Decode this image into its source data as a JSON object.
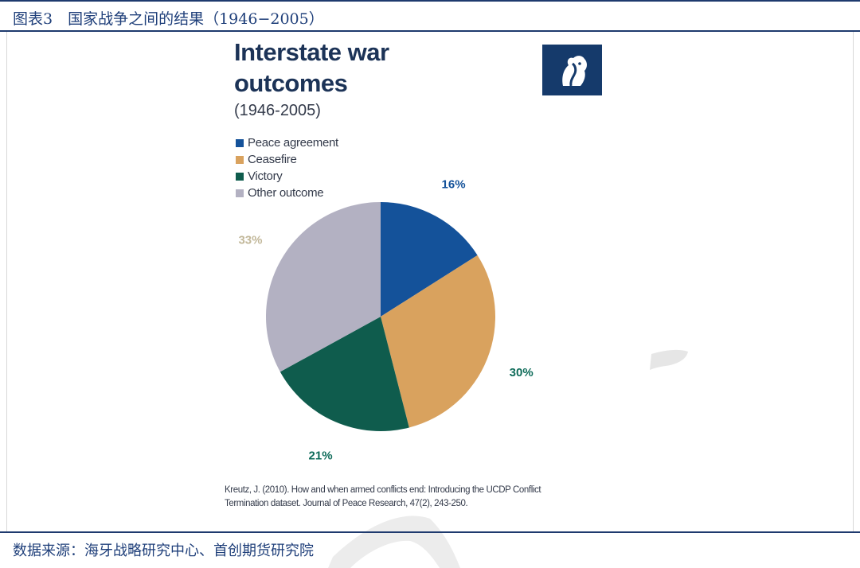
{
  "header": {
    "title": "图表3　国家战争之间的结果（1946−2005）"
  },
  "figure": {
    "title_line1": "Interstate war",
    "title_line2": "outcomes",
    "subtitle": "(1946-2005)",
    "source_line1": "Kreutz, J. (2010). How and when armed conflicts end: Introducing the UCDP Conflict",
    "source_line2": "Termination dataset. Journal of Peace Research, 47(2), 243-250."
  },
  "footer": {
    "source": "数据来源：海牙战略研究中心、首创期货研究院"
  },
  "chart_data": {
    "type": "pie",
    "categories": [
      "Peace agreement",
      "Ceasefire",
      "Victory",
      "Other outcome"
    ],
    "values": [
      16,
      30,
      21,
      33
    ],
    "labels": [
      "16%",
      "30%",
      "21%",
      "33%"
    ],
    "colors": [
      "#14529a",
      "#d9a25e",
      "#0f5c4d",
      "#b3b1c2"
    ],
    "label_colors": [
      "#14529a",
      "#0f6c5a",
      "#0f6c5a",
      "#c2b89a"
    ],
    "title": "Interstate war outcomes",
    "legend_position": "top-left"
  }
}
